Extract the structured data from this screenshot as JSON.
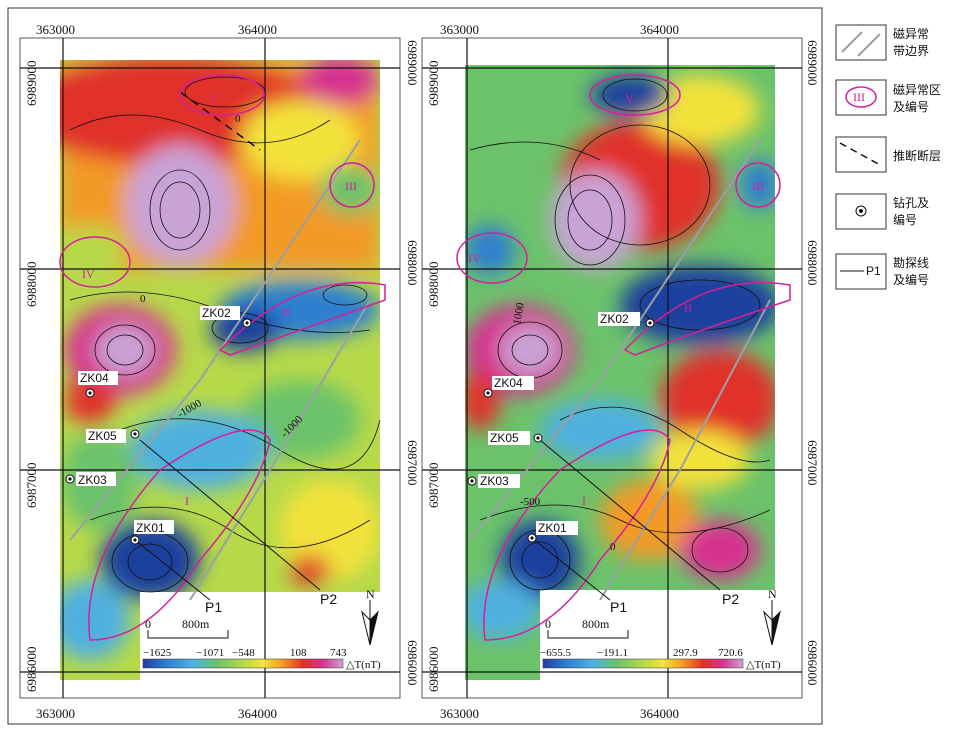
{
  "left_map": {
    "x_ticks": [
      "363000",
      "364000"
    ],
    "y_ticks": [
      "6989000",
      "6988000",
      "6987000",
      "6986000"
    ],
    "drillholes": [
      "ZK02",
      "ZK04",
      "ZK05",
      "ZK03",
      "ZK01"
    ],
    "profiles": [
      "P1",
      "P2"
    ],
    "anomalies": [
      "V",
      "III",
      "IV",
      "II",
      "I"
    ],
    "contours": [
      "0",
      "0",
      "-1000",
      "-1000"
    ],
    "colorbar_values": [
      "−1625",
      "−1071",
      "−548",
      "108",
      "743"
    ],
    "colorbar_unit": "△T(nT)",
    "scale_zero": "0",
    "scale_label": "800m",
    "north": "N"
  },
  "right_map": {
    "x_ticks": [
      "363000",
      "364000"
    ],
    "y_ticks": [
      "6989000",
      "6988000",
      "6987000",
      "6986000"
    ],
    "drillholes": [
      "ZK02",
      "ZK04",
      "ZK05",
      "ZK03",
      "ZK01"
    ],
    "profiles": [
      "P1",
      "P2"
    ],
    "anomalies": [
      "V",
      "III",
      "IV",
      "II",
      "I"
    ],
    "contours": [
      "1000",
      "-500",
      "0"
    ],
    "colorbar_values": [
      "−655.5",
      "−191.1",
      "297.9",
      "720.6"
    ],
    "colorbar_unit": "△T(nT)",
    "scale_zero": "0",
    "scale_label": "800m",
    "north": "N"
  },
  "legend": {
    "boundary": "磁异常\n带边界",
    "anomaly_area": "磁异常区\n及编号",
    "anomaly_symbol": "III",
    "fault": "推断断层",
    "drillhole": "钻孔及\n编号",
    "profile": "勘探线\n及编号",
    "profile_symbol": "P1"
  },
  "colors": {
    "anomaly_outline": "#d61f9b",
    "boundary_line": "#9aa0a6",
    "ramp": [
      "#1f3f9e",
      "#2f7fd0",
      "#4fb0e0",
      "#6cc26a",
      "#b6d94a",
      "#f3e23a",
      "#f39a25",
      "#e0302a",
      "#d6338f",
      "#c9a3d6"
    ]
  }
}
